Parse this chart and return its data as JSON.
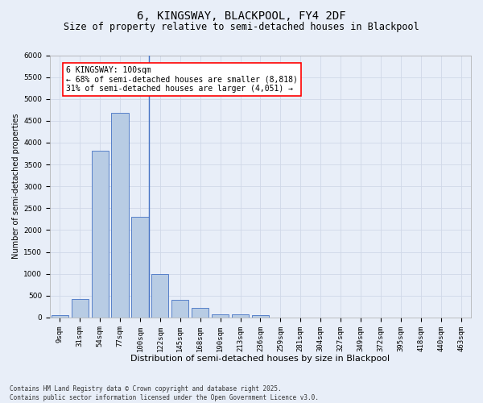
{
  "title": "6, KINGSWAY, BLACKPOOL, FY4 2DF",
  "subtitle": "Size of property relative to semi-detached houses in Blackpool",
  "xlabel": "Distribution of semi-detached houses by size in Blackpool",
  "ylabel": "Number of semi-detached properties",
  "bar_categories": [
    "9sqm",
    "31sqm",
    "54sqm",
    "77sqm",
    "100sqm",
    "122sqm",
    "145sqm",
    "168sqm",
    "190sqm",
    "213sqm",
    "236sqm",
    "259sqm",
    "281sqm",
    "304sqm",
    "327sqm",
    "349sqm",
    "372sqm",
    "395sqm",
    "418sqm",
    "440sqm",
    "463sqm"
  ],
  "bar_values": [
    50,
    430,
    3820,
    4680,
    2300,
    1000,
    410,
    210,
    80,
    65,
    55,
    0,
    0,
    0,
    0,
    0,
    0,
    0,
    0,
    0,
    0
  ],
  "bar_color": "#b8cce4",
  "bar_edge_color": "#4472c4",
  "vline_color": "#4472c4",
  "vline_x_index": 4,
  "annotation_text": "6 KINGSWAY: 100sqm\n← 68% of semi-detached houses are smaller (8,818)\n31% of semi-detached houses are larger (4,051) →",
  "annotation_box_color": "white",
  "annotation_box_edge_color": "red",
  "ylim": [
    0,
    6000
  ],
  "yticks": [
    0,
    500,
    1000,
    1500,
    2000,
    2500,
    3000,
    3500,
    4000,
    4500,
    5000,
    5500,
    6000
  ],
  "grid_color": "#d0d8e8",
  "bg_color": "#e8eef8",
  "footnote": "Contains HM Land Registry data © Crown copyright and database right 2025.\nContains public sector information licensed under the Open Government Licence v3.0.",
  "title_fontsize": 10,
  "subtitle_fontsize": 8.5,
  "xlabel_fontsize": 8,
  "ylabel_fontsize": 7,
  "tick_fontsize": 6.5,
  "annotation_fontsize": 7,
  "footnote_fontsize": 5.5
}
